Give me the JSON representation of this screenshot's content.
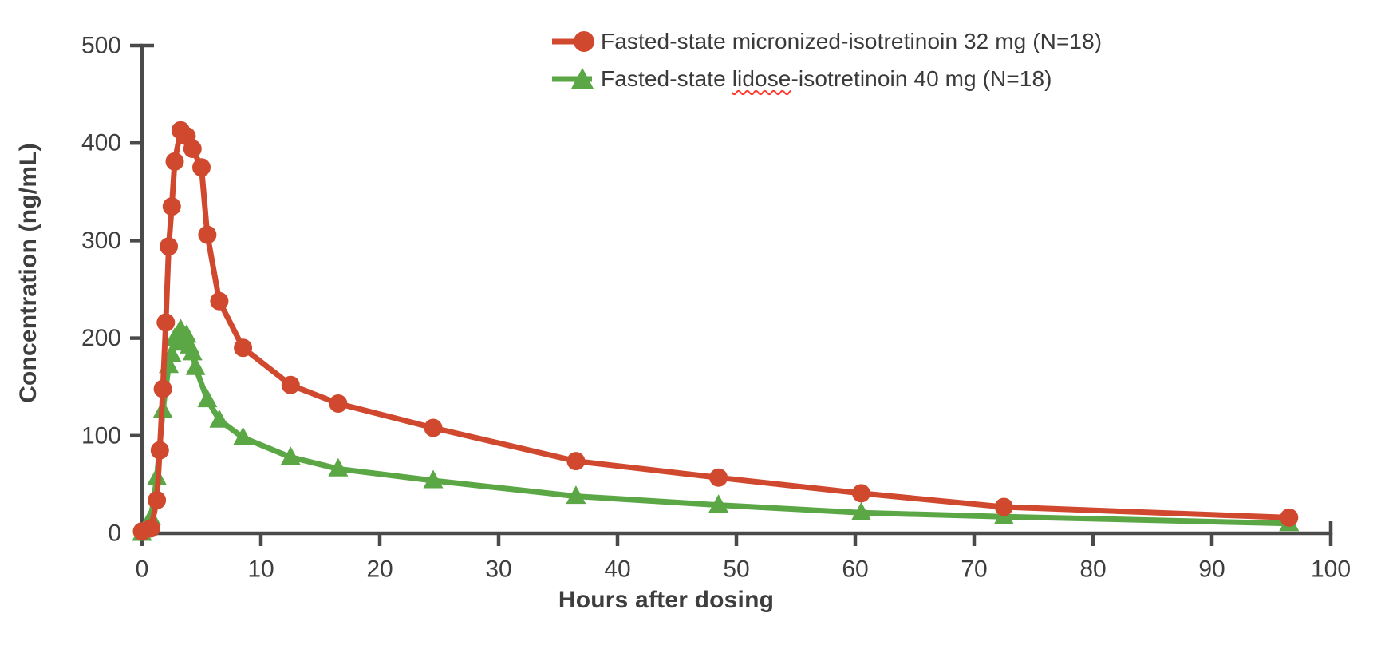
{
  "figure": {
    "y_axis_title": "Concentration (ng/mL)",
    "x_axis_title": "Hours after dosing",
    "legend": {
      "micronized_label": "Fasted-state micronized-isotretinoin 32 mg (N=18)",
      "lidose_label_pre": "Fasted-state ",
      "lidose_label_word": "lidose",
      "lidose_label_post": "-isotretinoin 40 mg (N=18)"
    },
    "colors": {
      "micronized_red": "#d0492f",
      "lidose_green": "#5ba745",
      "axis_gray": "#4a4a4a",
      "label_gray": "#3e3e3e",
      "squiggle_red": "#ff3b30"
    }
  },
  "chart_data": {
    "type": "line",
    "title": "",
    "xlabel": "Hours after dosing",
    "ylabel": "Concentration (ng/mL)",
    "xlim": [
      0,
      100
    ],
    "ylim": [
      0,
      500
    ],
    "x_ticks": [
      0,
      10,
      20,
      30,
      40,
      50,
      60,
      70,
      80,
      90,
      100
    ],
    "y_ticks": [
      0,
      100,
      200,
      300,
      400,
      500
    ],
    "grid": false,
    "legend_position": "top-center",
    "series": [
      {
        "name": "Fasted-state micronized-isotretinoin 32 mg (N=18)",
        "color": "#d0492f",
        "marker": "circle",
        "x": [
          0,
          0.75,
          1.25,
          1.5,
          1.75,
          2,
          2.25,
          2.5,
          2.75,
          3.25,
          3.75,
          4.25,
          5,
          5.5,
          6.5,
          8.5,
          12.5,
          16.5,
          24.5,
          36.5,
          48.5,
          60.5,
          72.5,
          96.5
        ],
        "values": [
          2,
          5,
          34,
          85,
          148,
          216,
          294,
          335,
          381,
          413,
          407,
          394,
          375,
          306,
          238,
          190,
          152,
          133,
          108,
          74,
          57,
          41,
          27,
          16
        ]
      },
      {
        "name": "Fasted-state lidose-isotretinoin 40 mg (N=18)",
        "color": "#5ba745",
        "marker": "triangle",
        "x": [
          0,
          0.75,
          1.25,
          1.75,
          2.25,
          2.5,
          2.75,
          3,
          3.25,
          3.5,
          3.75,
          4,
          4.25,
          4.5,
          5.5,
          6.5,
          8.5,
          12.5,
          16.5,
          24.5,
          36.5,
          48.5,
          60.5,
          72.5,
          96.5
        ],
        "values": [
          0,
          16,
          57,
          126,
          172,
          183,
          200,
          195,
          209,
          198,
          203,
          192,
          185,
          170,
          137,
          116,
          98,
          78,
          66,
          54,
          38,
          29,
          21,
          17,
          10
        ]
      }
    ]
  }
}
